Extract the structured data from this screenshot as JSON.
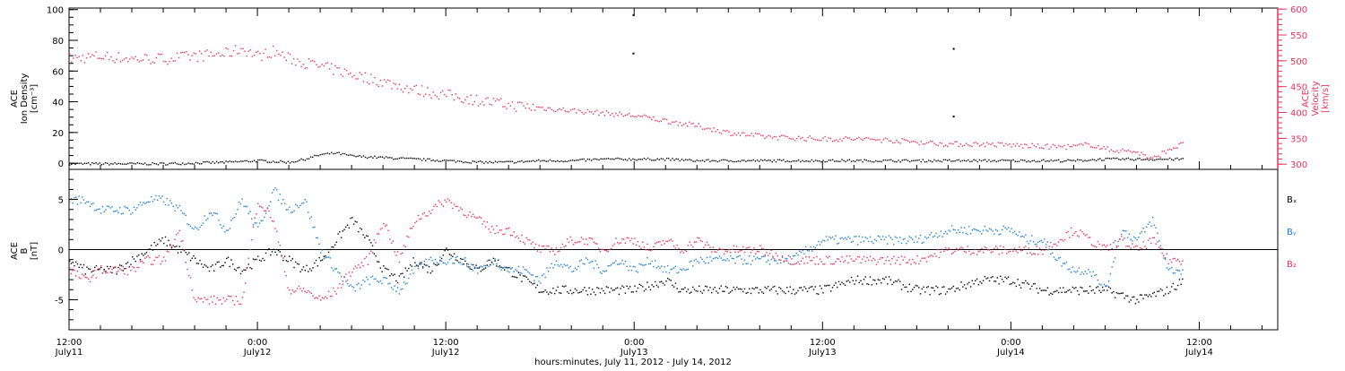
{
  "colors": {
    "black": "#000000",
    "pink": "#e8325f",
    "blue": "#1c7fd6"
  },
  "xaxis": {
    "label": "hours:minutes, July 11, 2012 - July 14, 2012",
    "ticks": [
      {
        "hour": 0,
        "time": "12:00",
        "date": "July11"
      },
      {
        "hour": 12,
        "time": "0:00",
        "date": "July12"
      },
      {
        "hour": 24,
        "time": "12:00",
        "date": "July12"
      },
      {
        "hour": 36,
        "time": "0:00",
        "date": "July13"
      },
      {
        "hour": 48,
        "time": "12:00",
        "date": "July13"
      },
      {
        "hour": 60,
        "time": "0:00",
        "date": "July14"
      },
      {
        "hour": 72,
        "time": "12:00",
        "date": "July14"
      }
    ]
  },
  "panels": {
    "top": {
      "left_label": [
        "ACE",
        "Ion Density",
        "[cm⁻³]"
      ],
      "right_label": [
        "ACE",
        "Velocity",
        "[km/s]"
      ]
    },
    "bottom": {
      "left_label": [
        "ACE",
        "B",
        "[nT]"
      ],
      "legend": [
        "Bₓ",
        "Bᵧ",
        "B₂"
      ]
    }
  },
  "chart_data": [
    {
      "type": "scatter",
      "title": "",
      "xlabel": "hours:minutes, July 11, 2012 - July 14, 2012",
      "x_unit": "hours since 12:00 July 11, 2012",
      "xlim": [
        0,
        77
      ],
      "ylim_left": [
        -4,
        101
      ],
      "ylim_right": [
        290,
        602
      ],
      "left_yticks": [
        0,
        20,
        40,
        60,
        80,
        100
      ],
      "right_yticks": [
        300,
        350,
        400,
        450,
        500,
        550,
        600
      ],
      "series": [
        {
          "name": "Ion Density",
          "axis": "left",
          "color": "#000000",
          "points": [
            [
              0,
              0
            ],
            [
              6,
              0
            ],
            [
              10,
              1
            ],
            [
              12,
              2
            ],
            [
              14,
              1
            ],
            [
              15,
              3
            ],
            [
              16,
              6
            ],
            [
              17,
              7
            ],
            [
              18,
              5
            ],
            [
              20,
              4
            ],
            [
              22,
              3
            ],
            [
              24,
              2
            ],
            [
              26,
              1
            ],
            [
              28,
              1
            ],
            [
              30,
              2
            ],
            [
              32,
              2
            ],
            [
              34,
              3
            ],
            [
              36,
              3
            ],
            [
              38,
              3
            ],
            [
              40,
              2
            ],
            [
              44,
              2
            ],
            [
              48,
              2
            ],
            [
              52,
              2
            ],
            [
              56,
              2
            ],
            [
              60,
              2
            ],
            [
              64,
              2
            ],
            [
              66,
              3
            ],
            [
              68,
              3
            ],
            [
              70,
              3
            ],
            [
              71,
              3
            ]
          ],
          "outliers": [
            [
              35.9,
              97
            ],
            [
              35.9,
              72
            ],
            [
              56.3,
              75
            ],
            [
              56.3,
              31
            ]
          ]
        },
        {
          "name": "Velocity",
          "axis": "right",
          "color": "#e8325f",
          "points": [
            [
              0,
              505
            ],
            [
              2,
              510
            ],
            [
              4,
              505
            ],
            [
              6,
              505
            ],
            [
              8,
              510
            ],
            [
              10,
              515
            ],
            [
              11,
              525
            ],
            [
              12,
              510
            ],
            [
              13,
              520
            ],
            [
              14,
              505
            ],
            [
              16,
              490
            ],
            [
              18,
              475
            ],
            [
              20,
              460
            ],
            [
              22,
              445
            ],
            [
              24,
              435
            ],
            [
              26,
              425
            ],
            [
              28,
              415
            ],
            [
              30,
              410
            ],
            [
              32,
              405
            ],
            [
              34,
              400
            ],
            [
              36,
              395
            ],
            [
              38,
              385
            ],
            [
              40,
              375
            ],
            [
              42,
              362
            ],
            [
              44,
              355
            ],
            [
              46,
              352
            ],
            [
              48,
              350
            ],
            [
              50,
              350
            ],
            [
              52,
              348
            ],
            [
              54,
              344
            ],
            [
              56,
              340
            ],
            [
              58,
              340
            ],
            [
              60,
              338
            ],
            [
              62,
              335
            ],
            [
              64,
              335
            ],
            [
              65,
              340
            ],
            [
              66,
              330
            ],
            [
              68,
              325
            ],
            [
              69,
              310
            ],
            [
              70,
              330
            ],
            [
              71,
              340
            ]
          ]
        }
      ]
    },
    {
      "type": "line",
      "title": "",
      "xlabel": "hours:minutes, July 11, 2012 - July 14, 2012",
      "x_unit": "hours since 12:00 July 11, 2012",
      "xlim": [
        0,
        77
      ],
      "ylim": [
        -8,
        8
      ],
      "yticks": [
        -5,
        0,
        5
      ],
      "zero_line": true,
      "series": [
        {
          "name": "Bx",
          "color": "#000000",
          "points": [
            [
              0,
              -1
            ],
            [
              1,
              -2
            ],
            [
              3,
              -2
            ],
            [
              5,
              0
            ],
            [
              6,
              1
            ],
            [
              7,
              0
            ],
            [
              8,
              -1
            ],
            [
              9,
              -2
            ],
            [
              10,
              -1
            ],
            [
              11,
              -2
            ],
            [
              12,
              -1
            ],
            [
              13,
              0
            ],
            [
              14,
              -1
            ],
            [
              15,
              -2
            ],
            [
              16,
              -1
            ],
            [
              17,
              1
            ],
            [
              18,
              3
            ],
            [
              19,
              1
            ],
            [
              20,
              -2
            ],
            [
              21,
              -3
            ],
            [
              22,
              -1
            ],
            [
              23,
              -2
            ],
            [
              24,
              0
            ],
            [
              25,
              -1
            ],
            [
              26,
              -2
            ],
            [
              27,
              -1
            ],
            [
              28,
              -2
            ],
            [
              29,
              -3
            ],
            [
              30,
              -4
            ],
            [
              32,
              -4
            ],
            [
              34,
              -4
            ],
            [
              36,
              -4
            ],
            [
              38,
              -3
            ],
            [
              39,
              -4
            ],
            [
              40,
              -4
            ],
            [
              42,
              -4
            ],
            [
              44,
              -4
            ],
            [
              46,
              -4
            ],
            [
              48,
              -4
            ],
            [
              50,
              -3
            ],
            [
              52,
              -3
            ],
            [
              54,
              -4
            ],
            [
              56,
              -4
            ],
            [
              58,
              -3
            ],
            [
              60,
              -3
            ],
            [
              62,
              -4
            ],
            [
              64,
              -4
            ],
            [
              66,
              -4
            ],
            [
              68,
              -5
            ],
            [
              70,
              -4
            ],
            [
              71,
              -3
            ]
          ]
        },
        {
          "name": "By",
          "color": "#1c7fd6",
          "points": [
            [
              0,
              5
            ],
            [
              1,
              5
            ],
            [
              2,
              4
            ],
            [
              3,
              4
            ],
            [
              4,
              4
            ],
            [
              5,
              5
            ],
            [
              6,
              5
            ],
            [
              7,
              4
            ],
            [
              8,
              2
            ],
            [
              9,
              4
            ],
            [
              10,
              2
            ],
            [
              11,
              5
            ],
            [
              12,
              2
            ],
            [
              13,
              6
            ],
            [
              14,
              4
            ],
            [
              15,
              5
            ],
            [
              16,
              0
            ],
            [
              17,
              -2
            ],
            [
              18,
              -4
            ],
            [
              19,
              -3
            ],
            [
              20,
              -3
            ],
            [
              21,
              -4
            ],
            [
              22,
              -2
            ],
            [
              23,
              -1
            ],
            [
              24,
              -1
            ],
            [
              25,
              -1
            ],
            [
              26,
              -2
            ],
            [
              27,
              -1
            ],
            [
              28,
              -2
            ],
            [
              29,
              -2
            ],
            [
              30,
              -3
            ],
            [
              31,
              -1
            ],
            [
              32,
              -2
            ],
            [
              33,
              -1
            ],
            [
              34,
              -2
            ],
            [
              35,
              -1
            ],
            [
              36,
              -2
            ],
            [
              37,
              -1
            ],
            [
              38,
              -2
            ],
            [
              39,
              -2
            ],
            [
              40,
              -1
            ],
            [
              41,
              -1
            ],
            [
              42,
              -1
            ],
            [
              43,
              -1
            ],
            [
              44,
              -1
            ],
            [
              45,
              -1
            ],
            [
              46,
              -1
            ],
            [
              47,
              0
            ],
            [
              48,
              1
            ],
            [
              50,
              1
            ],
            [
              52,
              1
            ],
            [
              54,
              1
            ],
            [
              56,
              2
            ],
            [
              58,
              2
            ],
            [
              60,
              2
            ],
            [
              61,
              1
            ],
            [
              62,
              1
            ],
            [
              63,
              -1
            ],
            [
              64,
              -2
            ],
            [
              65,
              -2
            ],
            [
              66,
              -4
            ],
            [
              67,
              2
            ],
            [
              68,
              1
            ],
            [
              69,
              3
            ],
            [
              70,
              -2
            ],
            [
              71,
              -2
            ]
          ]
        },
        {
          "name": "Bz",
          "color": "#e8325f",
          "points": [
            [
              0,
              -2
            ],
            [
              1,
              -3
            ],
            [
              2,
              -2
            ],
            [
              3,
              -2
            ],
            [
              4,
              -2
            ],
            [
              5,
              -1
            ],
            [
              6,
              -1
            ],
            [
              7,
              2
            ],
            [
              8,
              -5
            ],
            [
              9,
              -5
            ],
            [
              10,
              -5
            ],
            [
              11,
              -5
            ],
            [
              12,
              5
            ],
            [
              13,
              3
            ],
            [
              14,
              -4
            ],
            [
              15,
              -4
            ],
            [
              16,
              -5
            ],
            [
              17,
              -4
            ],
            [
              18,
              -2
            ],
            [
              19,
              -1
            ],
            [
              20,
              3
            ],
            [
              21,
              -1
            ],
            [
              22,
              3
            ],
            [
              23,
              4
            ],
            [
              24,
              5
            ],
            [
              25,
              4
            ],
            [
              26,
              3
            ],
            [
              27,
              2
            ],
            [
              28,
              2
            ],
            [
              29,
              1
            ],
            [
              30,
              0
            ],
            [
              31,
              0
            ],
            [
              32,
              1
            ],
            [
              33,
              1
            ],
            [
              34,
              0
            ],
            [
              35,
              1
            ],
            [
              36,
              1
            ],
            [
              37,
              0
            ],
            [
              38,
              1
            ],
            [
              39,
              0
            ],
            [
              40,
              1
            ],
            [
              41,
              0
            ],
            [
              42,
              0
            ],
            [
              43,
              0
            ],
            [
              44,
              0
            ],
            [
              46,
              -1
            ],
            [
              48,
              -1
            ],
            [
              50,
              -1
            ],
            [
              52,
              -1
            ],
            [
              54,
              -1
            ],
            [
              56,
              0
            ],
            [
              58,
              0
            ],
            [
              60,
              0
            ],
            [
              61,
              0
            ],
            [
              62,
              0
            ],
            [
              63,
              1
            ],
            [
              64,
              2
            ],
            [
              65,
              1
            ],
            [
              66,
              0
            ],
            [
              67,
              1
            ],
            [
              68,
              0
            ],
            [
              69,
              1
            ],
            [
              70,
              -1
            ],
            [
              71,
              -1
            ]
          ]
        }
      ]
    }
  ]
}
